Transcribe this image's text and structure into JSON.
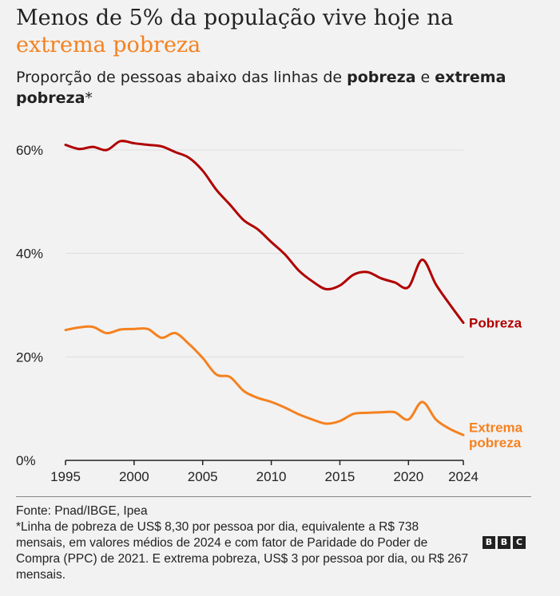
{
  "header": {
    "title_part1": "Menos de 5% da população vive hoje na",
    "title_part2": "extrema pobreza",
    "subtitle_part1": "Proporção de pessoas abaixo das linhas de ",
    "subtitle_bold1": "pobreza",
    "subtitle_part2": " e ",
    "subtitle_bold2": "extrema pobreza",
    "subtitle_part3": "*"
  },
  "footer": {
    "source": "Fonte: Pnad/IBGE, Ipea",
    "note": "*Linha de pobreza de US$ 8,30 por pessoa por dia, equivalente a R$ 738 mensais, em valores médios de 2024 e com fator de Paridade do Poder de Compra (PPC) de 2021. E extrema pobreza, US$ 3 por pessoa por dia, ou R$ 267 mensais.",
    "logo_letters": [
      "B",
      "B",
      "C"
    ]
  },
  "colors": {
    "pobreza": "#b00000",
    "extrema": "#f5811f",
    "grid": "#dddddd",
    "axis": "#222222"
  },
  "chart_data": {
    "type": "line",
    "title": "Menos de 5% da população vive hoje na extrema pobreza",
    "xlabel": "",
    "ylabel": "",
    "xlim": [
      1995,
      2024
    ],
    "ylim": [
      0,
      60
    ],
    "x_ticks": [
      1995,
      2000,
      2005,
      2010,
      2015,
      2020,
      2024
    ],
    "y_ticks": [
      0,
      20,
      40,
      60
    ],
    "y_tick_labels": [
      "0%",
      "20%",
      "40%",
      "60%"
    ],
    "grid": true,
    "series": [
      {
        "name": "Pobreza",
        "label_lines": [
          "Pobreza"
        ],
        "x": [
          1995,
          1996,
          1997,
          1998,
          1999,
          2000,
          2001,
          2002,
          2003,
          2004,
          2005,
          2006,
          2007,
          2008,
          2009,
          2010,
          2011,
          2012,
          2013,
          2014,
          2015,
          2016,
          2017,
          2018,
          2019,
          2020,
          2021,
          2022,
          2023,
          2024
        ],
        "values": [
          61.0,
          60.2,
          60.6,
          60.0,
          61.7,
          61.3,
          61.0,
          60.7,
          59.6,
          58.5,
          56.0,
          52.3,
          49.4,
          46.4,
          44.7,
          42.2,
          39.8,
          36.7,
          34.6,
          33.1,
          33.8,
          35.9,
          36.4,
          35.2,
          34.4,
          33.5,
          38.8,
          34.0,
          30.2,
          26.6
        ]
      },
      {
        "name": "Extrema pobreza",
        "label_lines": [
          "Extrema",
          "pobreza"
        ],
        "x": [
          1995,
          1996,
          1997,
          1998,
          1999,
          2000,
          2001,
          2002,
          2003,
          2004,
          2005,
          2006,
          2007,
          2008,
          2009,
          2010,
          2011,
          2012,
          2013,
          2014,
          2015,
          2016,
          2017,
          2018,
          2019,
          2020,
          2021,
          2022,
          2023,
          2024
        ],
        "values": [
          25.2,
          25.7,
          25.8,
          24.6,
          25.3,
          25.4,
          25.4,
          23.7,
          24.6,
          22.5,
          19.8,
          16.6,
          16.1,
          13.4,
          12.1,
          11.3,
          10.2,
          8.9,
          7.9,
          7.1,
          7.6,
          9.0,
          9.2,
          9.3,
          9.3,
          7.9,
          11.3,
          7.9,
          6.1,
          4.9
        ]
      }
    ]
  }
}
